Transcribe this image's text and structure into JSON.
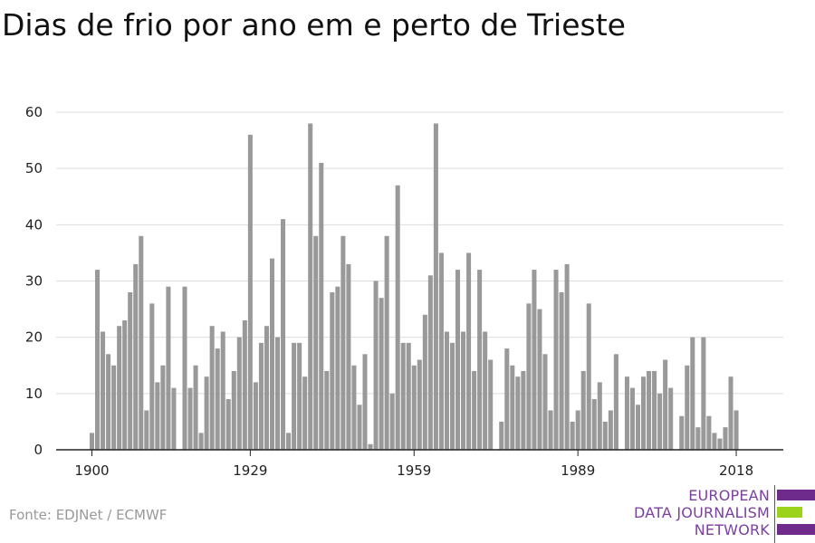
{
  "title": "Dias de frio por ano em e perto de Trieste",
  "source": "Fonte: EDJNet / ECMWF",
  "logo": {
    "lines": [
      "EUROPEAN",
      "DATA JOURNALISM",
      "NETWORK"
    ],
    "colors": {
      "purple": "#6e2b8c",
      "green": "#9bd31c"
    }
  },
  "colors": {
    "bar": "#999999",
    "grid": "#dddddd",
    "axis": "#222222"
  },
  "chart_data": {
    "type": "bar",
    "xlabel": "",
    "ylabel": "",
    "ylim": [
      0,
      60
    ],
    "yticks": [
      0,
      10,
      20,
      30,
      40,
      50,
      60
    ],
    "xticks": [
      1900,
      1929,
      1959,
      1989,
      2018
    ],
    "xlim": [
      1896,
      2025
    ],
    "grid": true,
    "legend": "none",
    "x": [
      1900,
      1901,
      1902,
      1903,
      1904,
      1905,
      1906,
      1907,
      1908,
      1909,
      1910,
      1911,
      1912,
      1913,
      1914,
      1915,
      1916,
      1917,
      1918,
      1919,
      1920,
      1921,
      1922,
      1923,
      1924,
      1925,
      1926,
      1927,
      1928,
      1929,
      1930,
      1931,
      1932,
      1933,
      1934,
      1935,
      1936,
      1937,
      1938,
      1939,
      1940,
      1941,
      1942,
      1943,
      1944,
      1945,
      1946,
      1947,
      1948,
      1949,
      1950,
      1951,
      1952,
      1953,
      1954,
      1955,
      1956,
      1957,
      1958,
      1959,
      1960,
      1961,
      1962,
      1963,
      1964,
      1965,
      1966,
      1967,
      1968,
      1969,
      1970,
      1971,
      1972,
      1973,
      1974,
      1975,
      1976,
      1977,
      1978,
      1979,
      1980,
      1981,
      1982,
      1983,
      1984,
      1985,
      1986,
      1987,
      1988,
      1989,
      1990,
      1991,
      1992,
      1993,
      1994,
      1995,
      1996,
      1997,
      1998,
      1999,
      2000,
      2001,
      2002,
      2003,
      2004,
      2005,
      2006,
      2007,
      2008,
      2009,
      2010,
      2011,
      2012,
      2013,
      2014,
      2015,
      2016,
      2017,
      2018
    ],
    "values": [
      3,
      32,
      21,
      17,
      15,
      22,
      23,
      28,
      33,
      38,
      7,
      26,
      12,
      15,
      29,
      11,
      0,
      29,
      11,
      15,
      3,
      13,
      22,
      18,
      21,
      9,
      14,
      20,
      23,
      56,
      12,
      19,
      22,
      34,
      20,
      41,
      3,
      19,
      19,
      13,
      58,
      38,
      51,
      14,
      28,
      29,
      38,
      33,
      15,
      8,
      17,
      1,
      30,
      27,
      38,
      10,
      47,
      19,
      19,
      15,
      16,
      24,
      31,
      58,
      35,
      21,
      19,
      32,
      21,
      35,
      14,
      32,
      21,
      16,
      0,
      5,
      18,
      15,
      13,
      14,
      26,
      32,
      25,
      17,
      7,
      32,
      28,
      33,
      5,
      7,
      14,
      26,
      9,
      12,
      5,
      7,
      17,
      0,
      13,
      11,
      8,
      13,
      14,
      14,
      10,
      16,
      11,
      0,
      6,
      15,
      20,
      4,
      20,
      6,
      3,
      2,
      4,
      13,
      7
    ]
  }
}
